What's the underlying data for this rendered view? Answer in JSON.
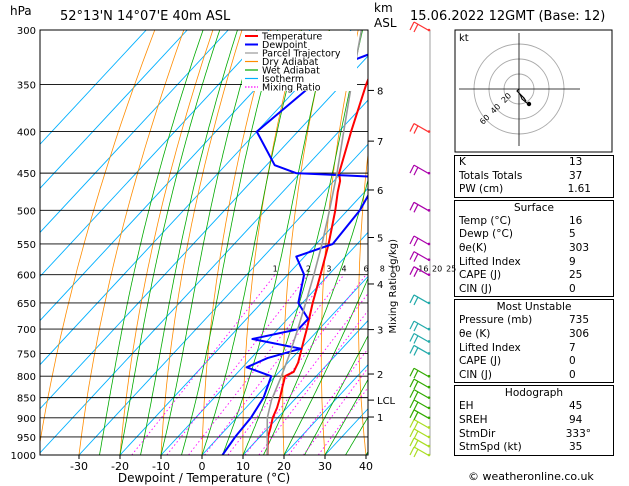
{
  "header": {
    "hpa": "hPa",
    "location": "52°13'N  14°07'E  40m  ASL",
    "km": "km",
    "asl": "ASL",
    "datetime": "15.06.2022  12GMT  (Base: 12)"
  },
  "legend": [
    {
      "label": "Temperature",
      "color": "#ff0000"
    },
    {
      "label": "Dewpoint",
      "color": "#0000ff"
    },
    {
      "label": "Parcel Trajectory",
      "color": "#999999"
    },
    {
      "label": "Dry Adiabat",
      "color": "#ff8c00"
    },
    {
      "label": "Wet Adiabat",
      "color": "#00aa00"
    },
    {
      "label": "Isotherm",
      "color": "#00b0ff"
    },
    {
      "label": "Mixing Ratio",
      "color": "#ff00ff"
    }
  ],
  "chart_data": {
    "type": "line",
    "pressure_levels": [
      300,
      350,
      400,
      450,
      500,
      550,
      600,
      650,
      700,
      750,
      800,
      850,
      900,
      950,
      1000
    ],
    "x_ticks": [
      -30,
      -20,
      -10,
      0,
      10,
      20,
      30,
      40
    ],
    "xlabel": "Dewpoint / Temperature (°C)",
    "ylabel": "hPa",
    "km_ticks": [
      {
        "label": "8",
        "p": 356
      },
      {
        "label": "7",
        "p": 411
      },
      {
        "label": "6",
        "p": 472
      },
      {
        "label": "5",
        "p": 540
      },
      {
        "label": "4",
        "p": 616
      },
      {
        "label": "3",
        "p": 701
      },
      {
        "label": "2",
        "p": 795
      },
      {
        "label": "LCL",
        "p": 856
      },
      {
        "label": "1",
        "p": 898
      }
    ],
    "mixing_ratio_label": "Mixing Ratio (g/kg)",
    "mixing_ratio_values": [
      "1",
      "2",
      "3",
      "4",
      "6",
      "8",
      "10",
      "16",
      "20",
      "25"
    ],
    "series": [
      {
        "name": "Temperature",
        "color": "#ff0000",
        "points": [
          [
            1000,
            16
          ],
          [
            975,
            14
          ],
          [
            950,
            12
          ],
          [
            925,
            10.5
          ],
          [
            900,
            8.8
          ],
          [
            875,
            7.6
          ],
          [
            850,
            6
          ],
          [
            825,
            4.2
          ],
          [
            800,
            2.4
          ],
          [
            790,
            3.5
          ],
          [
            770,
            2.5
          ],
          [
            750,
            1
          ],
          [
            725,
            -1
          ],
          [
            700,
            -3
          ],
          [
            650,
            -7.5
          ],
          [
            600,
            -12
          ],
          [
            550,
            -17
          ],
          [
            500,
            -23
          ],
          [
            475,
            -26.5
          ],
          [
            460,
            -28.5
          ],
          [
            450,
            -30.5
          ],
          [
            400,
            -37
          ],
          [
            350,
            -44
          ],
          [
            300,
            -51
          ]
        ]
      },
      {
        "name": "Dewpoint",
        "color": "#0000ff",
        "points": [
          [
            1000,
            5
          ],
          [
            950,
            4
          ],
          [
            900,
            3.5
          ],
          [
            850,
            2
          ],
          [
            800,
            -1
          ],
          [
            780,
            -9
          ],
          [
            760,
            -6
          ],
          [
            740,
            0
          ],
          [
            720,
            -14
          ],
          [
            700,
            -5
          ],
          [
            680,
            -5
          ],
          [
            650,
            -11
          ],
          [
            600,
            -16
          ],
          [
            570,
            -22
          ],
          [
            550,
            -16
          ],
          [
            500,
            -17
          ],
          [
            455,
            -20
          ],
          [
            450,
            -41
          ],
          [
            440,
            -48
          ],
          [
            400,
            -60
          ],
          [
            350,
            -57
          ],
          [
            330,
            -54
          ],
          [
            310,
            -45
          ],
          [
            300,
            -48
          ]
        ]
      },
      {
        "name": "Parcel Trajectory",
        "color": "#999999",
        "points": [
          [
            1000,
            16
          ],
          [
            950,
            11.8
          ],
          [
            900,
            7.5
          ],
          [
            856,
            4.5
          ],
          [
            800,
            1.5
          ],
          [
            750,
            -1.6
          ],
          [
            700,
            -5.2
          ],
          [
            650,
            -9.2
          ],
          [
            600,
            -13.6
          ],
          [
            550,
            -18.6
          ],
          [
            500,
            -24.4
          ],
          [
            450,
            -31
          ],
          [
            400,
            -38.8
          ],
          [
            350,
            -47.6
          ],
          [
            300,
            -57.5
          ]
        ]
      }
    ]
  },
  "hodograph": {
    "title": "kt",
    "ring_labels": [
      "20",
      "40",
      "60"
    ]
  },
  "indices": {
    "k_label": "K",
    "k": "13",
    "tt_label": "Totals Totals",
    "tt": "37",
    "pw_label": "PW (cm)",
    "pw": "1.61"
  },
  "surface": {
    "title": "Surface",
    "rows": [
      {
        "label": "Temp (°C)",
        "value": "16"
      },
      {
        "label": "Dewp (°C)",
        "value": "5"
      },
      {
        "label": "θe(K)",
        "value": "303"
      },
      {
        "label": "Lifted Index",
        "value": "9"
      },
      {
        "label": "CAPE (J)",
        "value": "25"
      },
      {
        "label": "CIN (J)",
        "value": "0"
      }
    ]
  },
  "most_unstable": {
    "title": "Most Unstable",
    "rows": [
      {
        "label": "Pressure (mb)",
        "value": "735"
      },
      {
        "label": "θe (K)",
        "value": "306"
      },
      {
        "label": "Lifted Index",
        "value": "7"
      },
      {
        "label": "CAPE (J)",
        "value": "0"
      },
      {
        "label": "CIN (J)",
        "value": "0"
      }
    ]
  },
  "hodograph_stats": {
    "title": "Hodograph",
    "rows": [
      {
        "label": "EH",
        "value": "45"
      },
      {
        "label": "SREH",
        "value": "94"
      },
      {
        "label": "StmDir",
        "value": "333°"
      },
      {
        "label": "StmSpd (kt)",
        "value": "35"
      }
    ]
  },
  "credit": "© weatheronline.co.uk"
}
